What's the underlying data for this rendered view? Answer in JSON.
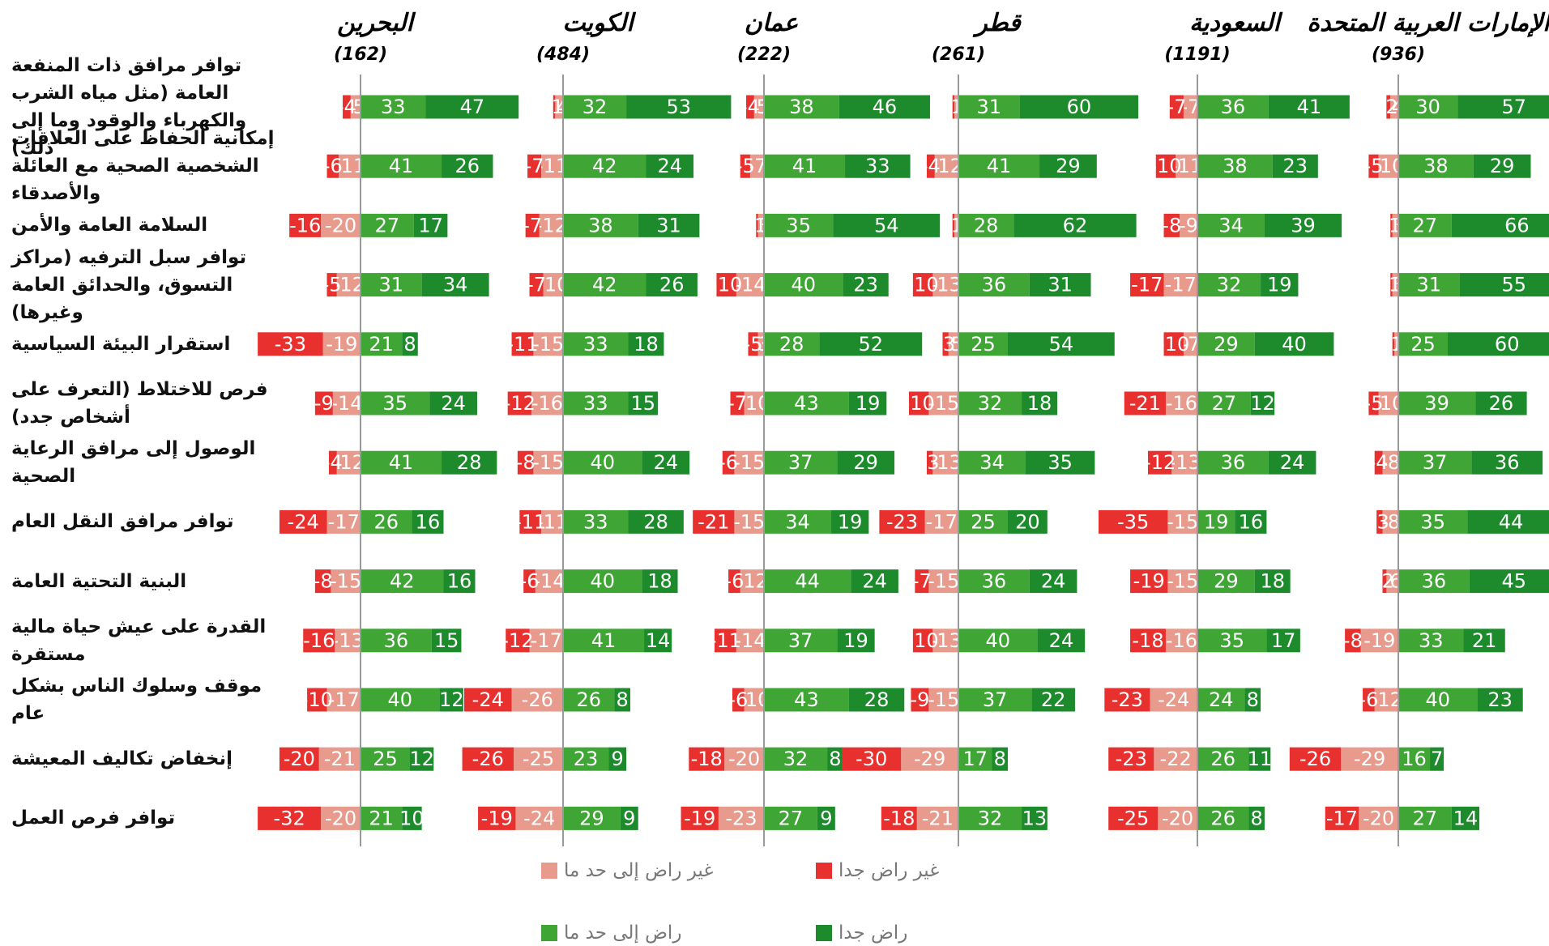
{
  "chart_data": {
    "type": "diverging_bar",
    "categories": [
      "توافر مرافق ذات المنفعة العامة (مثل مياه الشرب والكهرباء والوقود وما إلى ذلك)",
      "إمكانية الحفاظ على العلاقات الشخصية الصحية مع العائلة والأصدقاء",
      "السلامة العامة والأمن",
      "توافر سبل الترفيه (مراكز التسوق، والحدائق العامة وغيرها)",
      "استقرار البيئة السياسية",
      "فرص للاختلاط (التعرف على أشخاص جدد)",
      "الوصول إلى مرافق الرعاية الصحية",
      "توافر مرافق النقل العام",
      "البنية التحتية العامة",
      "القدرة على عيش حياة مالية مستقرة",
      "موقف وسلوك الناس بشكل عام",
      "إنخفاض تكاليف المعيشة",
      "توافر فرص العمل"
    ],
    "series": [
      {
        "name": "غير راض جدا",
        "color": "#e8302f"
      },
      {
        "name": "غير راض إلى حد ما",
        "color": "#e89a8c"
      },
      {
        "name": "راض إلى حد ما",
        "color": "#3fa535"
      },
      {
        "name": "راض جدا",
        "color": "#1d8a2c"
      }
    ],
    "panels": [
      {
        "title": "البحرين",
        "subtitle": "(162)",
        "values": [
          [
            -4,
            -6,
            -16,
            -5,
            -33,
            -9,
            -4,
            -24,
            -8,
            -16,
            -10,
            -20,
            -32
          ],
          [
            -5,
            -11,
            -20,
            -12,
            -19,
            -14,
            -12,
            -17,
            -15,
            -13,
            -17,
            -21,
            -20
          ],
          [
            33,
            41,
            27,
            31,
            21,
            35,
            41,
            26,
            42,
            36,
            40,
            25,
            21
          ],
          [
            47,
            26,
            17,
            34,
            8,
            24,
            28,
            16,
            16,
            15,
            12,
            12,
            10
          ]
        ]
      },
      {
        "title": "الكويت",
        "subtitle": "(484)",
        "values": [
          [
            -1,
            -7,
            -7,
            -7,
            -11,
            -12,
            -8,
            -11,
            -6,
            -12,
            -24,
            -26,
            -19
          ],
          [
            -4,
            -11,
            -12,
            -10,
            -15,
            -16,
            -15,
            -11,
            -14,
            -17,
            -26,
            -25,
            -24
          ],
          [
            32,
            42,
            38,
            42,
            33,
            33,
            40,
            33,
            40,
            41,
            26,
            23,
            29
          ],
          [
            53,
            24,
            31,
            26,
            18,
            15,
            24,
            28,
            18,
            14,
            8,
            9,
            9
          ]
        ]
      },
      {
        "title": "عمان",
        "subtitle": "(222)",
        "values": [
          [
            -4,
            -5,
            -1,
            -10,
            -5,
            -7,
            -6,
            -21,
            -6,
            -11,
            -6,
            -18,
            -19
          ],
          [
            -5,
            -7,
            -3,
            -14,
            -3,
            -10,
            -15,
            -15,
            -12,
            -14,
            -10,
            -20,
            -23
          ],
          [
            38,
            41,
            35,
            40,
            28,
            43,
            37,
            34,
            44,
            37,
            43,
            32,
            27
          ],
          [
            46,
            33,
            54,
            23,
            52,
            19,
            29,
            19,
            24,
            19,
            28,
            8,
            9
          ]
        ]
      },
      {
        "title": "قطر",
        "subtitle": "(261)",
        "values": [
          [
            -1,
            -4,
            -1,
            -10,
            -3,
            -10,
            -3,
            -23,
            -7,
            -10,
            -9,
            -30,
            -18
          ],
          [
            -2,
            -12,
            -2,
            -13,
            -5,
            -15,
            -13,
            -17,
            -15,
            -13,
            -15,
            -29,
            -21
          ],
          [
            31,
            41,
            28,
            36,
            25,
            32,
            34,
            25,
            36,
            40,
            37,
            17,
            32
          ],
          [
            60,
            29,
            62,
            31,
            54,
            18,
            35,
            20,
            24,
            24,
            22,
            8,
            13
          ]
        ]
      },
      {
        "title": "السعودية",
        "subtitle": "(1191)",
        "values": [
          [
            -7,
            -10,
            -8,
            -17,
            -10,
            -21,
            -12,
            -35,
            -19,
            -18,
            -23,
            -23,
            -25
          ],
          [
            -7,
            -11,
            -9,
            -17,
            -7,
            -16,
            -13,
            -15,
            -15,
            -16,
            -24,
            -22,
            -20
          ],
          [
            36,
            38,
            34,
            32,
            29,
            27,
            36,
            19,
            29,
            35,
            24,
            26,
            26
          ],
          [
            41,
            23,
            39,
            19,
            40,
            12,
            24,
            16,
            18,
            17,
            8,
            11,
            8
          ]
        ]
      },
      {
        "title": "الإمارات العربية المتحدة",
        "subtitle": "(936)",
        "values": [
          [
            -2,
            -5,
            -1,
            -1,
            -1,
            -5,
            -4,
            -3,
            -2,
            -8,
            -6,
            -26,
            -17
          ],
          [
            -4,
            -10,
            -3,
            -3,
            -2,
            -10,
            -8,
            -8,
            -6,
            -19,
            -12,
            -29,
            -20
          ],
          [
            30,
            38,
            27,
            31,
            25,
            39,
            37,
            35,
            36,
            33,
            40,
            16,
            27
          ],
          [
            57,
            29,
            66,
            55,
            60,
            26,
            36,
            44,
            45,
            21,
            23,
            7,
            14
          ]
        ]
      }
    ]
  }
}
